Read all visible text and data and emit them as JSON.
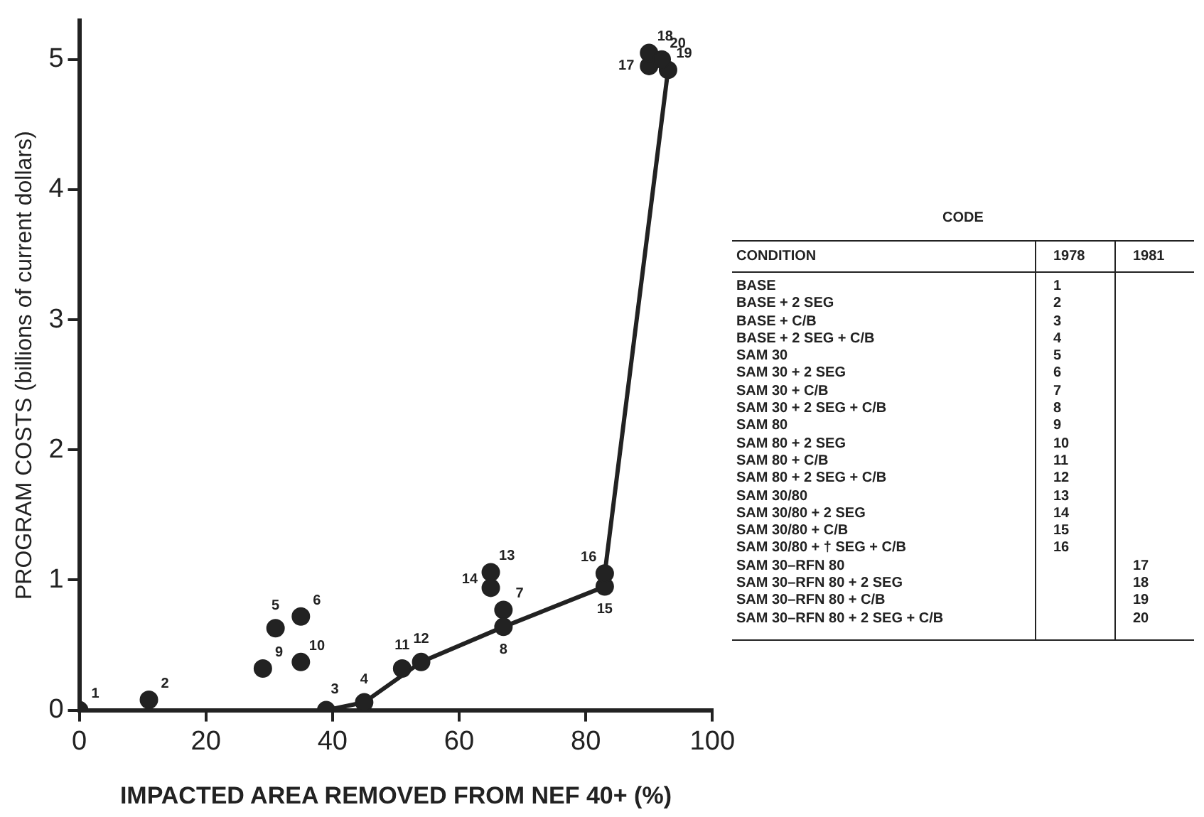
{
  "chart_data": {
    "type": "scatter",
    "xlabel": "IMPACTED AREA REMOVED FROM NEF 40+ (%)",
    "ylabel": "PROGRAM COSTS (billions of current dollars)",
    "xlim": [
      0,
      100
    ],
    "xticks": [
      0,
      20,
      40,
      60,
      80,
      100
    ],
    "ylim": [
      0,
      5.3
    ],
    "yticks": [
      0,
      1,
      2,
      3,
      4,
      5
    ],
    "grid": false,
    "legend": false,
    "series": [
      {
        "color": "#222222",
        "marker": "circle",
        "x": [
          0,
          11,
          39,
          45,
          31,
          35,
          67,
          67,
          29,
          35,
          51,
          54,
          65,
          65,
          83,
          83,
          90,
          90,
          93,
          92
        ],
        "values": [
          0,
          0.08,
          0,
          0.06,
          0.63,
          0.72,
          0.77,
          0.64,
          0.32,
          0.37,
          0.32,
          0.37,
          1.06,
          0.94,
          0.95,
          1.05,
          4.95,
          5.05,
          4.92,
          5.0
        ]
      },
      {
        "type": "line",
        "color": "#222222",
        "marker": "none",
        "line_style": "solid",
        "x": [
          39,
          45,
          54,
          67,
          83,
          83,
          93
        ],
        "values": [
          0,
          0.06,
          0.37,
          0.64,
          0.95,
          1.05,
          4.92
        ]
      }
    ],
    "annotations": [
      {
        "text": "1",
        "x": 0,
        "y": 0
      },
      {
        "text": "2",
        "x": 11,
        "y": 0.08
      },
      {
        "text": "3",
        "x": 39,
        "y": 0
      },
      {
        "text": "4",
        "x": 45,
        "y": 0.06
      },
      {
        "text": "5",
        "x": 31,
        "y": 0.63
      },
      {
        "text": "6",
        "x": 35,
        "y": 0.72
      },
      {
        "text": "7",
        "x": 67,
        "y": 0.77
      },
      {
        "text": "8",
        "x": 67,
        "y": 0.64
      },
      {
        "text": "9",
        "x": 29,
        "y": 0.32
      },
      {
        "text": "10",
        "x": 35,
        "y": 0.37
      },
      {
        "text": "11",
        "x": 51,
        "y": 0.32
      },
      {
        "text": "12",
        "x": 54,
        "y": 0.37
      },
      {
        "text": "13",
        "x": 65,
        "y": 1.06
      },
      {
        "text": "14",
        "x": 65,
        "y": 0.94
      },
      {
        "text": "15",
        "x": 83,
        "y": 0.95
      },
      {
        "text": "16",
        "x": 83,
        "y": 1.05
      },
      {
        "text": "17",
        "x": 90,
        "y": 4.95
      },
      {
        "text": "18",
        "x": 90,
        "y": 5.05
      },
      {
        "text": "19",
        "x": 93,
        "y": 4.92
      },
      {
        "text": "20",
        "x": 92,
        "y": 5.0
      },
      "CODE",
      "CONDITION",
      "1978",
      "1981",
      "BASE",
      "1",
      null,
      "BASE + 2 SEG",
      "2",
      null,
      "BASE + C/B",
      "3",
      null,
      "BASE + 2 SEG + C/B",
      "4",
      null,
      "SAM 30",
      "5",
      null,
      "SAM 30 + 2 SEG",
      "6",
      null,
      "SAM 30 + C/B",
      "7",
      null,
      "SAM 30 + 2 SEG + C/B",
      "8",
      null,
      "SAM 80",
      "9",
      null,
      "SAM 80 + 2 SEG",
      "10",
      null,
      "SAM 80 + C/B",
      "11",
      null,
      "SAM 80 + 2 SEG + C/B",
      "12",
      null,
      "SAM 30/80",
      "13",
      null,
      "SAM 30/80 + 2 SEG",
      "14",
      null,
      "SAM 30/80 + C/B",
      "15",
      null,
      "SAM 30/80 + † SEG + C/B",
      "16",
      null,
      "SAM 30–RFN 80",
      null,
      "17",
      "SAM 30–RFN 80 + 2 SEG",
      null,
      "18",
      "SAM 30–RFN 80 + C/B",
      null,
      "19",
      "SAM 30–RFN 80 + 2 SEG + C/B",
      null,
      "20"
    ]
  }
}
